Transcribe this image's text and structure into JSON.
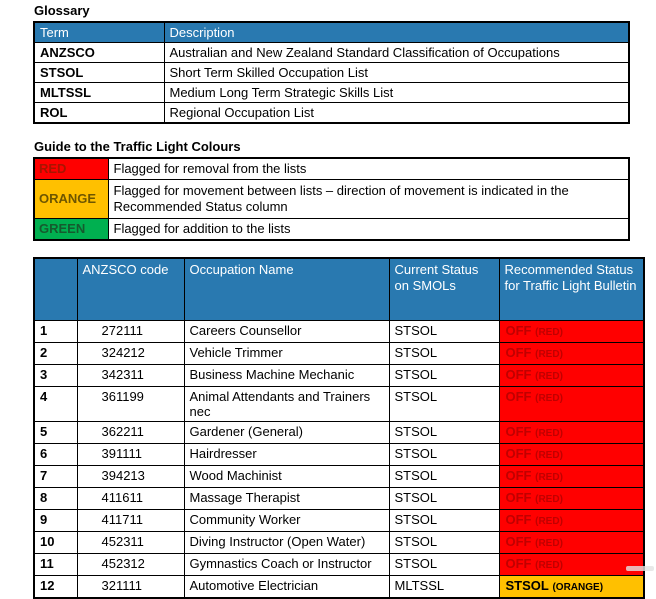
{
  "page": {
    "background": "#ffffff"
  },
  "colors": {
    "header_blue": "#2979B0",
    "header_text": "#ffffff",
    "border": "#000000",
    "red": "#FF0000",
    "orange": "#FFC000",
    "green": "#00B050",
    "dark_red_text": "#C00000"
  },
  "glossary": {
    "title": "Glossary",
    "headers": [
      "Term",
      "Description"
    ],
    "rows": [
      {
        "term": "ANZSCO",
        "description": "Australian and New Zealand Standard Classification of Occupations"
      },
      {
        "term": "STSOL",
        "description": "Short Term Skilled Occupation List"
      },
      {
        "term": "MLTSSL",
        "description": "Medium Long Term Strategic Skills List"
      },
      {
        "term": "ROL",
        "description": "Regional Occupation List"
      }
    ]
  },
  "traffic_guide": {
    "title": "Guide to the Traffic Light Colours",
    "rows": [
      {
        "label": "RED",
        "bg": "#FF0000",
        "label_color": "#A81400",
        "lines": 1,
        "description": "Flagged for removal from the lists"
      },
      {
        "label": "ORANGE",
        "bg": "#FFC000",
        "label_color": "#6E5600",
        "lines": 2,
        "description": "Flagged for movement between lists – direction of movement is indicated in the Recommended Status column"
      },
      {
        "label": "GREEN",
        "bg": "#00B050",
        "label_color": "#155B2E",
        "lines": 1,
        "description": "Flagged for addition to the lists"
      }
    ]
  },
  "occupations": {
    "headers": [
      "",
      "ANZSCO code",
      "Occupation Name",
      "Current Status on SMOLs",
      "Recommended Status for Traffic Light Bulletin"
    ],
    "rows": [
      {
        "num": "1",
        "code": "272111",
        "name": "Careers Counsellor",
        "current": "STSOL",
        "rec_value": "OFF",
        "rec_note": "(RED)",
        "rec_bg": "#FF0000",
        "rec_color": "#C00000"
      },
      {
        "num": "2",
        "code": "324212",
        "name": "Vehicle Trimmer",
        "current": "STSOL",
        "rec_value": "OFF",
        "rec_note": "(RED)",
        "rec_bg": "#FF0000",
        "rec_color": "#C00000"
      },
      {
        "num": "3",
        "code": "342311",
        "name": "Business Machine Mechanic",
        "current": "STSOL",
        "rec_value": "OFF",
        "rec_note": "(RED)",
        "rec_bg": "#FF0000",
        "rec_color": "#C00000"
      },
      {
        "num": "4",
        "code": "361199",
        "name": "Animal Attendants and Trainers nec",
        "current": "STSOL",
        "rec_value": "OFF",
        "rec_note": "(RED)",
        "rec_bg": "#FF0000",
        "rec_color": "#C00000"
      },
      {
        "num": "5",
        "code": "362211",
        "name": "Gardener (General)",
        "current": "STSOL",
        "rec_value": "OFF",
        "rec_note": "(RED)",
        "rec_bg": "#FF0000",
        "rec_color": "#C00000"
      },
      {
        "num": "6",
        "code": "391111",
        "name": "Hairdresser",
        "current": "STSOL",
        "rec_value": "OFF",
        "rec_note": "(RED)",
        "rec_bg": "#FF0000",
        "rec_color": "#C00000"
      },
      {
        "num": "7",
        "code": "394213",
        "name": "Wood Machinist",
        "current": "STSOL",
        "rec_value": "OFF",
        "rec_note": "(RED)",
        "rec_bg": "#FF0000",
        "rec_color": "#C00000"
      },
      {
        "num": "8",
        "code": "411611",
        "name": "Massage Therapist",
        "current": "STSOL",
        "rec_value": "OFF",
        "rec_note": "(RED)",
        "rec_bg": "#FF0000",
        "rec_color": "#C00000"
      },
      {
        "num": "9",
        "code": "411711",
        "name": "Community Worker",
        "current": "STSOL",
        "rec_value": "OFF",
        "rec_note": "(RED)",
        "rec_bg": "#FF0000",
        "rec_color": "#C00000"
      },
      {
        "num": "10",
        "code": "452311",
        "name": "Diving Instructor (Open Water)",
        "current": "STSOL",
        "rec_value": "OFF",
        "rec_note": "(RED)",
        "rec_bg": "#FF0000",
        "rec_color": "#C00000"
      },
      {
        "num": "11",
        "code": "452312",
        "name": "Gymnastics Coach or Instructor",
        "current": "STSOL",
        "rec_value": "OFF",
        "rec_note": "(RED)",
        "rec_bg": "#FF0000",
        "rec_color": "#C00000"
      },
      {
        "num": "12",
        "code": "321111",
        "name": "Automotive Electrician",
        "current": "MLTSSL",
        "rec_value": "STSOL",
        "rec_note": "(ORANGE)",
        "rec_bg": "#FFC000",
        "rec_color": "#000000"
      }
    ]
  }
}
